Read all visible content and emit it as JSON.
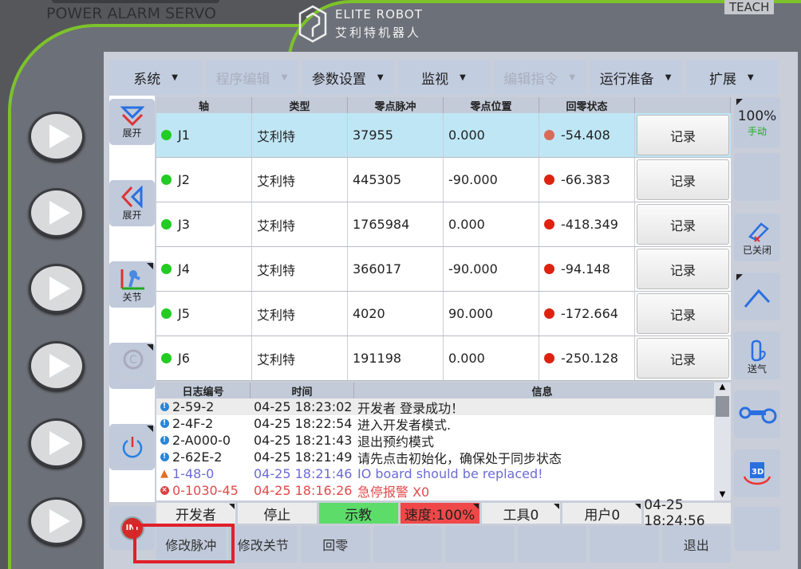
{
  "header": {
    "indicators": "POWER  ALARM  SERVO",
    "mode_badge": "TEACH",
    "logo_en": "ELITE ROBOT",
    "logo_cn": "艾利特机器人"
  },
  "menu": [
    {
      "label": "系统",
      "enabled": true
    },
    {
      "label": "程序编辑",
      "enabled": false
    },
    {
      "label": "参数设置",
      "enabled": true
    },
    {
      "label": "监视",
      "enabled": true
    },
    {
      "label": "编辑指令",
      "enabled": false
    },
    {
      "label": "运行准备",
      "enabled": true
    },
    {
      "label": "扩展",
      "enabled": true
    }
  ],
  "left_panel": {
    "expand_down": "展开",
    "expand_left": "展开",
    "joint": "关节",
    "cycle": "单循环"
  },
  "table": {
    "headers": [
      "轴",
      "类型",
      "零点脉冲",
      "零点位置",
      "回零状态",
      ""
    ],
    "rows": [
      {
        "axis": "J1",
        "type": "艾利特",
        "pulse": "37955",
        "pos": "0.000",
        "state": "-54.408",
        "btn": "记录"
      },
      {
        "axis": "J2",
        "type": "艾利特",
        "pulse": "445305",
        "pos": "-90.000",
        "state": "-66.383",
        "btn": "记录"
      },
      {
        "axis": "J3",
        "type": "艾利特",
        "pulse": "1765984",
        "pos": "0.000",
        "state": "-418.349",
        "btn": "记录"
      },
      {
        "axis": "J4",
        "type": "艾利特",
        "pulse": "366017",
        "pos": "-90.000",
        "state": "-94.148",
        "btn": "记录"
      },
      {
        "axis": "J5",
        "type": "艾利特",
        "pulse": "4020",
        "pos": "90.000",
        "state": "-172.664",
        "btn": "记录"
      },
      {
        "axis": "J6",
        "type": "艾利特",
        "pulse": "191198",
        "pos": "0.000",
        "state": "-250.128",
        "btn": "记录"
      }
    ]
  },
  "log": {
    "headers": [
      "日志编号",
      "时间",
      "信息"
    ],
    "rows": [
      {
        "level": "info",
        "id": "2-59-2",
        "time": "04-25 18:23:02",
        "msg": "开发者 登录成功！"
      },
      {
        "level": "info",
        "id": "2-4F-2",
        "time": "04-25 18:22:54",
        "msg": "进入开发者模式."
      },
      {
        "level": "info",
        "id": "2-A000-0",
        "time": "04-25 18:21:43",
        "msg": "退出预约模式"
      },
      {
        "level": "info",
        "id": "2-62E-2",
        "time": "04-25 18:21:49",
        "msg": "请先点击初始化，确保处于同步状态"
      },
      {
        "level": "warning",
        "id": "1-48-0",
        "time": "04-25 18:21:46",
        "msg": "IO board should be replaced!"
      },
      {
        "level": "error",
        "id": "0-1030-45",
        "time": "04-25 18:16:26",
        "msg": "急停报警 X0"
      }
    ]
  },
  "status": {
    "user": "开发者",
    "run": "停止",
    "mode": "示教",
    "speed": "速度:100%",
    "tool": "工具0",
    "user_frame": "用户0",
    "datetime": "04-25 18:24:56"
  },
  "bottom": [
    "修改脉冲",
    "修改关节",
    "回零",
    "",
    "",
    "",
    "",
    "退出"
  ],
  "right_panel": {
    "speed": "100%",
    "speed_mode": "手动",
    "torch": "已关闭",
    "gas": "送气"
  },
  "colors": {
    "green_dot": "#22cc22",
    "red_dot": "#dd2211",
    "speed_bg": "#f04848",
    "mode_bg": "#5ddc6a",
    "accent": "#7dc22a",
    "highlight": "#e0202a"
  }
}
